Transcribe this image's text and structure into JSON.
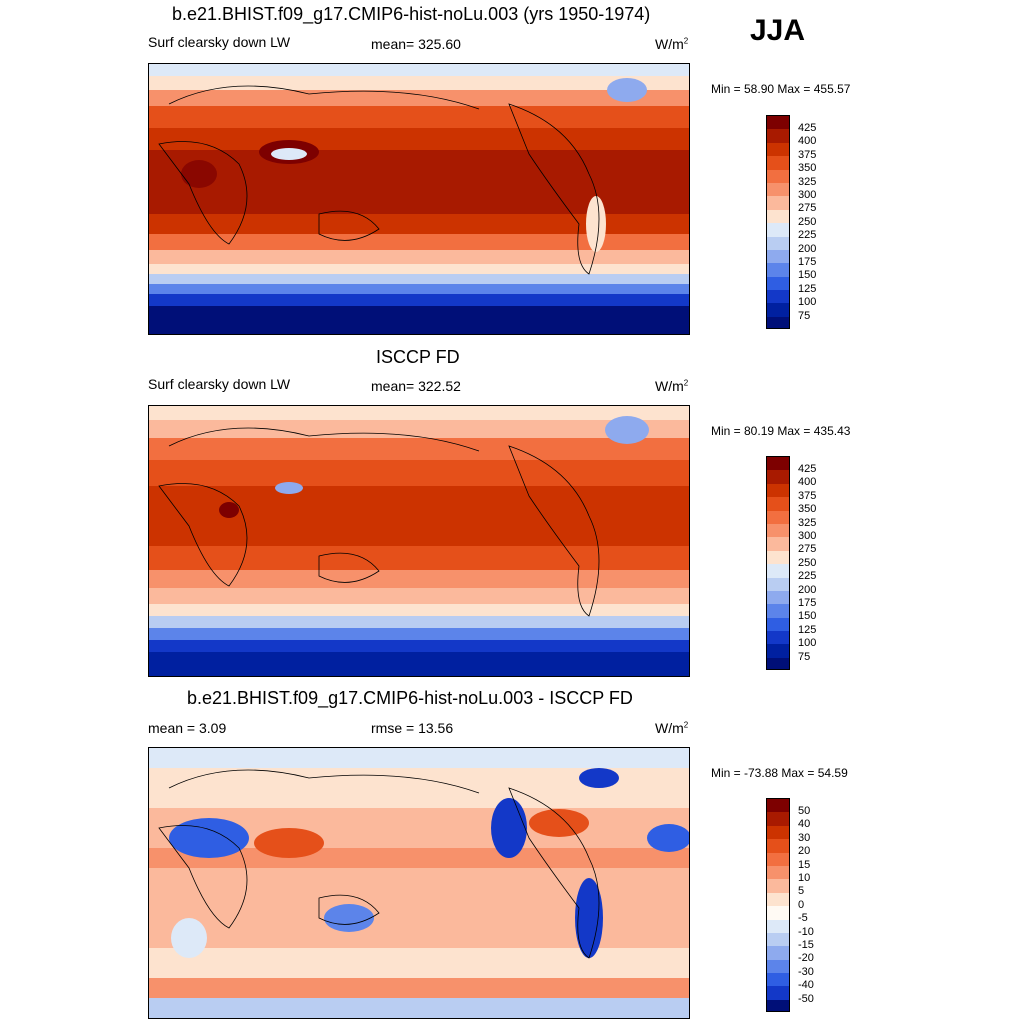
{
  "season": "JJA",
  "panels": [
    {
      "title": "b.e21.BHIST.f09_g17.CMIP6-hist-noLu.003 (yrs 1950-1974)",
      "left_label": "Surf clearsky down LW",
      "center_label": "mean= 325.60",
      "units": "W/m",
      "units_sup": "2",
      "minmax": "Min =  58.90 Max = 455.57"
    },
    {
      "title": "ISCCP FD",
      "left_label": "Surf clearsky down LW",
      "center_label": "mean= 322.52",
      "units": "W/m",
      "units_sup": "2",
      "minmax": "Min =  80.19 Max = 435.43"
    },
    {
      "title": "b.e21.BHIST.f09_g17.CMIP6-hist-noLu.003 - ISCCP FD",
      "left_label": "mean =   3.09",
      "center_label": "rmse =  13.56",
      "units": "W/m",
      "units_sup": "2",
      "minmax": "Min = -73.88 Max =  54.59"
    }
  ],
  "colorbar_abs": {
    "labels": [
      "425",
      "400",
      "375",
      "350",
      "325",
      "300",
      "275",
      "250",
      "225",
      "200",
      "175",
      "150",
      "125",
      "100",
      "75"
    ],
    "colors": [
      "#7d0000",
      "#a81a00",
      "#cc3300",
      "#e5501a",
      "#f26f40",
      "#f7916b",
      "#fbb99c",
      "#fde3cf",
      "#dde9f8",
      "#b9cdf2",
      "#8eaaee",
      "#5c84ea",
      "#2f5ee3",
      "#1338c8",
      "#0020a0",
      "#000f78"
    ]
  },
  "colorbar_diff": {
    "labels": [
      "50",
      "40",
      "30",
      "20",
      "15",
      "10",
      "5",
      "0",
      "-5",
      "-10",
      "-15",
      "-20",
      "-30",
      "-40",
      "-50"
    ],
    "colors": [
      "#7d0000",
      "#a81a00",
      "#cc3300",
      "#e5501a",
      "#f26f40",
      "#f7916b",
      "#fbb99c",
      "#fde3cf",
      "#fffaf4",
      "#dde9f8",
      "#b9cdf2",
      "#8eaaee",
      "#5c84ea",
      "#2f5ee3",
      "#1338c8",
      "#000f78"
    ]
  }
}
